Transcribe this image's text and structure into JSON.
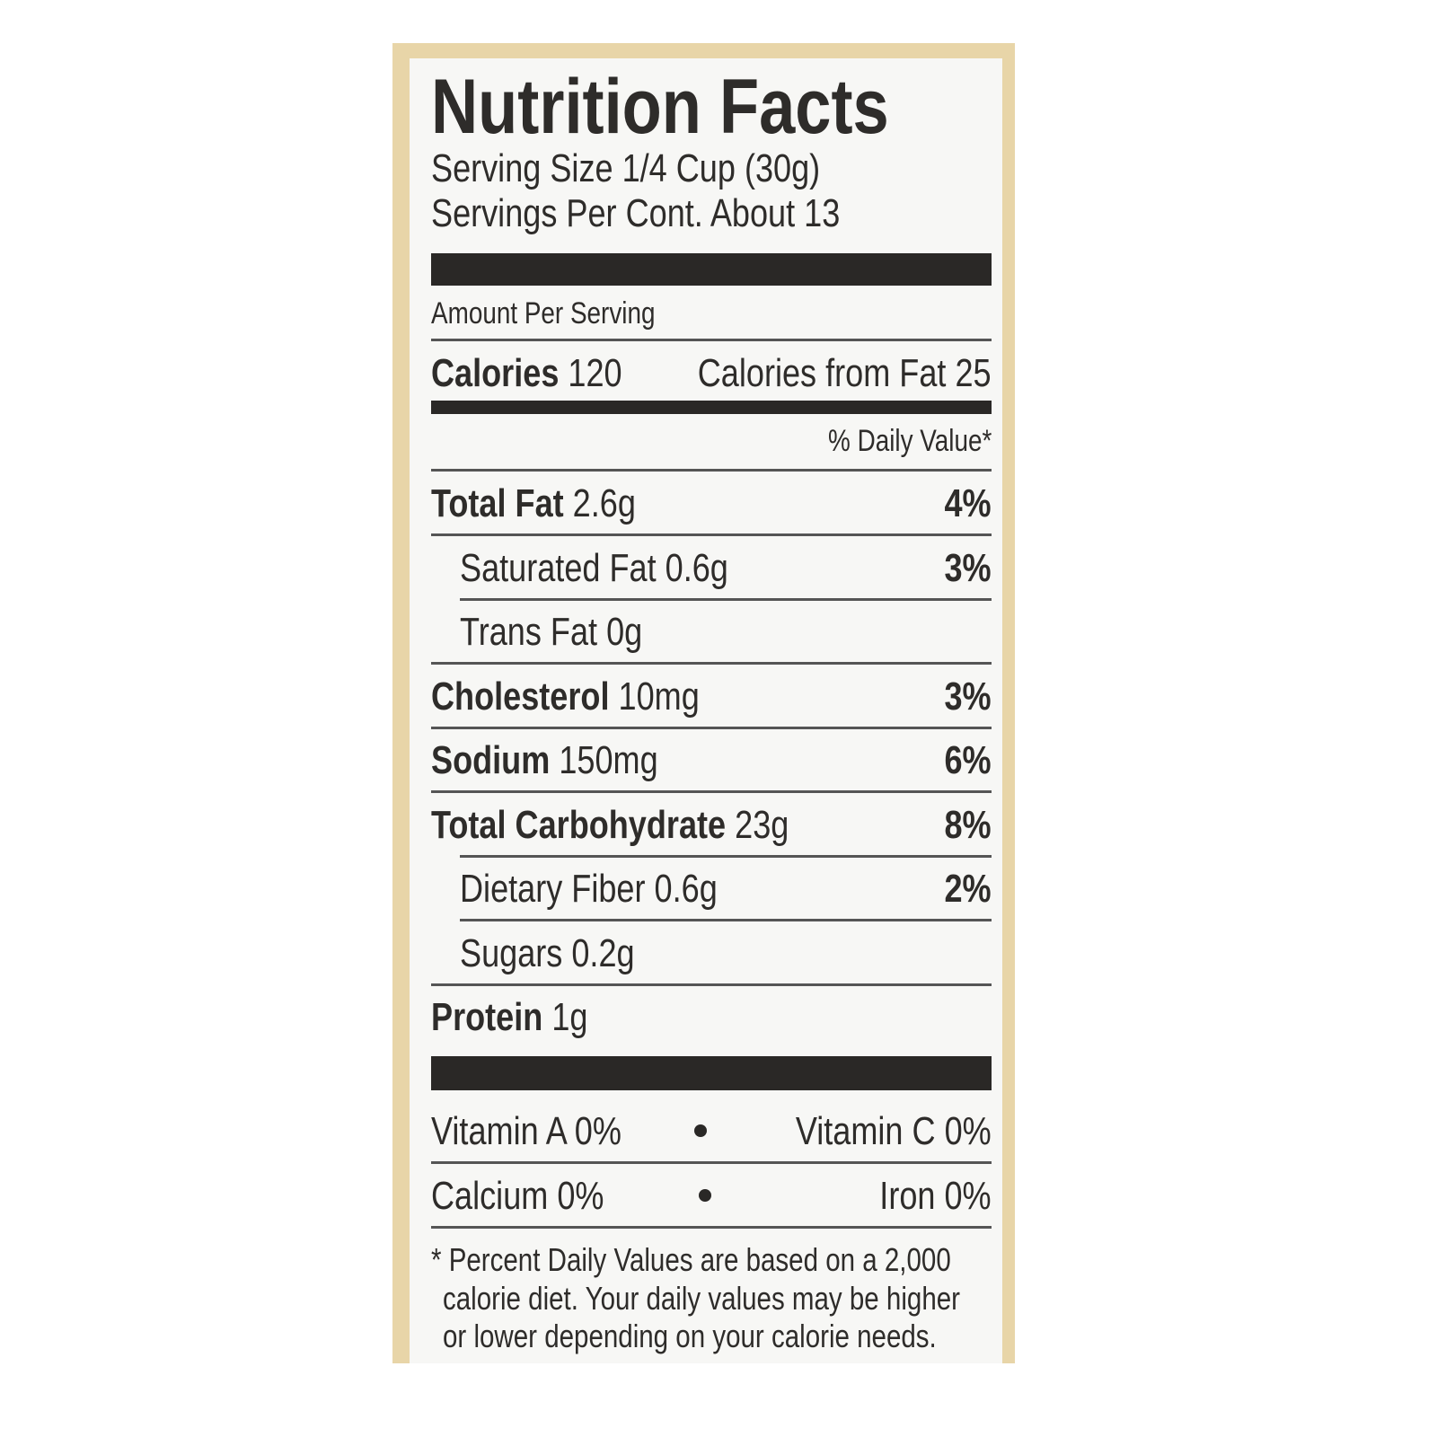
{
  "header": {
    "title": "Nutrition Facts",
    "serving_size": "Serving Size 1/4 Cup (30g)",
    "servings_per_container": "Servings Per Cont. About 13"
  },
  "amount_per_serving": "Amount Per Serving",
  "calories": {
    "label": "Calories",
    "value": "120",
    "from_fat": "Calories from Fat 25"
  },
  "daily_value_header": "% Daily Value*",
  "nutrients": [
    {
      "label": "Total Fat",
      "amount": "2.6g",
      "dv": "4%"
    },
    {
      "label": "Saturated Fat",
      "amount": "0.6g",
      "dv": "3%"
    },
    {
      "label": "Trans Fat",
      "amount": "0g"
    },
    {
      "label": "Cholesterol",
      "amount": "10mg",
      "dv": "3%"
    },
    {
      "label": "Sodium",
      "amount": "150mg",
      "dv": "6%"
    },
    {
      "label": "Total Carbohydrate",
      "amount": "23g",
      "dv": "8%"
    },
    {
      "label": "Dietary Fiber",
      "amount": "0.6g",
      "dv": "2%"
    },
    {
      "label": "Sugars",
      "amount": "0.2g"
    },
    {
      "label": "Protein",
      "amount": "1g"
    }
  ],
  "vitamins": [
    [
      "Vitamin A 0%",
      "Vitamin C 0%"
    ],
    [
      "Calcium 0%",
      "Iron 0%"
    ]
  ],
  "footnote": [
    "* Percent Daily Values are based on a 2,000",
    "calorie diet. Your daily values may be higher",
    "or lower depending on your calorie needs."
  ]
}
